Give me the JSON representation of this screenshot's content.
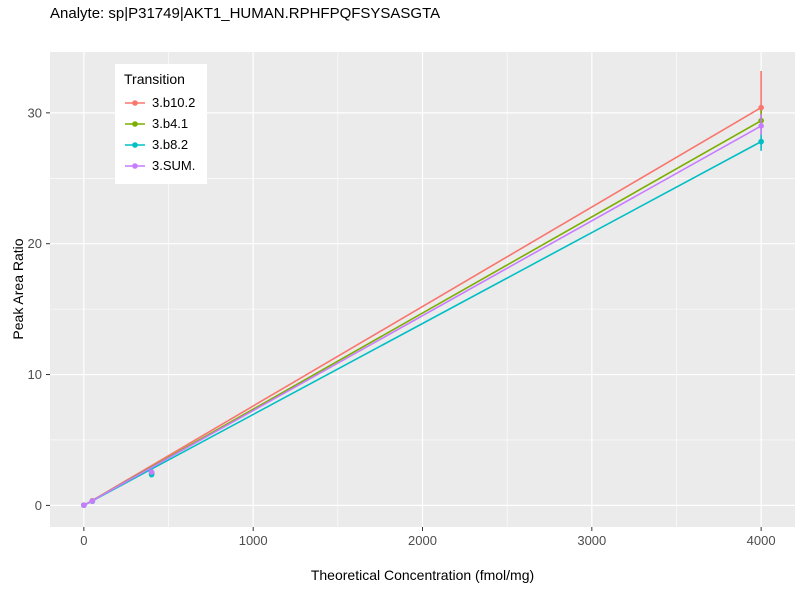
{
  "chart_data": {
    "type": "line",
    "title": "Analyte: sp|P31749|AKT1_HUMAN.RPHFPQFSYSASGTA",
    "xlabel": "Theoretical Concentration (fmol/mg)",
    "ylabel": "Peak Area Ratio",
    "legend_title": "Transition",
    "legend_position": "top-left-inside",
    "grid": true,
    "panel_background": "#EBEBEB",
    "gridline_color": "#FFFFFF",
    "axis_text_color": "#4d4d4d",
    "tick_color": "#333333",
    "xlim": [
      -200,
      4200
    ],
    "ylim": [
      -1.65,
      34.65
    ],
    "x_ticks": [
      0,
      1000,
      2000,
      3000,
      4000
    ],
    "y_ticks": [
      0,
      10,
      20,
      30
    ],
    "x_minor": [
      500,
      1500,
      2500,
      3500
    ],
    "y_minor": [
      5,
      15,
      25
    ],
    "series": [
      {
        "name": "3.b10.2",
        "color": "#F8766D",
        "line": [
          [
            0,
            0.0
          ],
          [
            4000,
            30.4
          ]
        ],
        "points": [
          [
            0,
            0.02
          ],
          [
            50,
            0.35
          ],
          [
            400,
            2.5
          ],
          [
            4000,
            30.4
          ]
        ],
        "errorbars": [
          [
            4000,
            29.4,
            33.2
          ]
        ]
      },
      {
        "name": "3.b4.1",
        "color": "#7CAE00",
        "line": [
          [
            0,
            0.0
          ],
          [
            4000,
            29.4
          ]
        ],
        "points": [
          [
            0,
            0.02
          ],
          [
            50,
            0.34
          ],
          [
            400,
            2.45
          ],
          [
            4000,
            29.4
          ]
        ],
        "errorbars": [
          [
            4000,
            28.6,
            30.2
          ]
        ]
      },
      {
        "name": "3.b8.2",
        "color": "#00BFC4",
        "line": [
          [
            0,
            0.0
          ],
          [
            4000,
            27.8
          ]
        ],
        "points": [
          [
            0,
            0.02
          ],
          [
            50,
            0.32
          ],
          [
            400,
            2.35
          ],
          [
            4000,
            27.8
          ]
        ],
        "errorbars": [
          [
            4000,
            27.1,
            28.6
          ]
        ]
      },
      {
        "name": "3.SUM.",
        "color": "#C77CFF",
        "line": [
          [
            0,
            0.0
          ],
          [
            4000,
            29.0
          ]
        ],
        "points": [
          [
            0,
            0.02
          ],
          [
            50,
            0.33
          ],
          [
            400,
            2.55
          ],
          [
            4000,
            29.0
          ]
        ],
        "errorbars": [
          [
            4000,
            28.3,
            29.9
          ]
        ]
      }
    ]
  }
}
